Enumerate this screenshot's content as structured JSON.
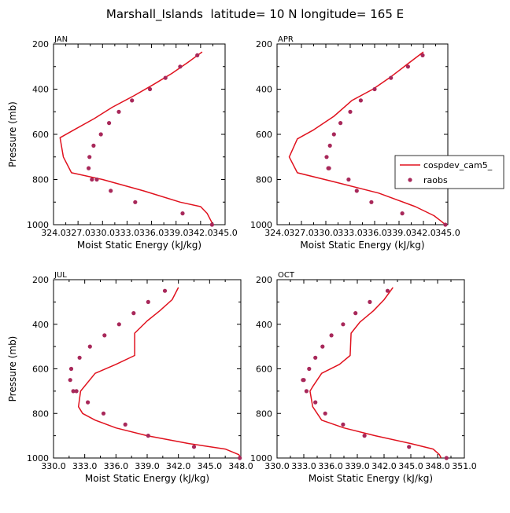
{
  "figure_title": "Marshall_Islands  latitude= 10 N longitude= 165 E",
  "colors": {
    "model": "#e0121e",
    "obs": "#a8285a",
    "axis": "#000000"
  },
  "legend_entries": [
    "cospdev_cam5_",
    "raobs"
  ],
  "chart_data": [
    {
      "type": "line",
      "panel_label": "JAN",
      "xlabel": "Moist Static Energy (kJ/kg)",
      "ylabel": "Pressure (mb)",
      "xlim": [
        324.0,
        345.0
      ],
      "xticks": [
        "324.0",
        "327.0",
        "330.0",
        "333.0",
        "336.0",
        "339.0",
        "342.0",
        "345.0"
      ],
      "ylim": [
        200,
        1000
      ],
      "yticks": [
        "200",
        "400",
        "600",
        "800",
        "1000"
      ],
      "series": [
        {
          "name": "cospdev_cam5_",
          "style": "line",
          "x": [
            342.2,
            340.5,
            338.5,
            336.2,
            333.8,
            331.2,
            329.0,
            326.5,
            324.8,
            325.2,
            326.2,
            330.0,
            335.0,
            339.5,
            342.0,
            342.8,
            343.3,
            343.5
          ],
          "y": [
            235,
            280,
            330,
            380,
            430,
            480,
            530,
            580,
            615,
            700,
            770,
            800,
            850,
            900,
            920,
            950,
            985,
            1000
          ]
        },
        {
          "name": "raobs",
          "style": "markers",
          "x": [
            341.6,
            339.5,
            337.7,
            335.8,
            333.6,
            332.0,
            330.8,
            329.8,
            328.9,
            328.4,
            328.3,
            328.7,
            329.3,
            331.0,
            334.0,
            339.8,
            343.4
          ],
          "y": [
            250,
            300,
            350,
            400,
            450,
            500,
            550,
            600,
            650,
            700,
            750,
            800,
            800,
            850,
            900,
            950,
            1000
          ]
        }
      ]
    },
    {
      "type": "line",
      "panel_label": "APR",
      "xlabel": "Moist Static Energy (kJ/kg)",
      "ylabel": "",
      "xlim": [
        324.0,
        345.0
      ],
      "xticks": [
        "324.0",
        "327.0",
        "330.0",
        "333.0",
        "336.0",
        "339.0",
        "342.0",
        "345.0"
      ],
      "ylim": [
        200,
        1000
      ],
      "yticks": [
        "200",
        "400",
        "600",
        "800",
        "1000"
      ],
      "series": [
        {
          "name": "cospdev_cam5_",
          "style": "line",
          "x": [
            342.0,
            340.0,
            338.0,
            335.8,
            333.2,
            331.0,
            328.5,
            326.5,
            325.5,
            326.5,
            331.0,
            336.5,
            341.0,
            343.3,
            344.2,
            344.7
          ],
          "y": [
            235,
            290,
            345,
            400,
            450,
            520,
            580,
            620,
            700,
            770,
            810,
            860,
            920,
            960,
            985,
            1000
          ]
        },
        {
          "name": "raobs",
          "style": "markers",
          "x": [
            341.9,
            340.1,
            338.0,
            336.0,
            334.3,
            333.0,
            331.8,
            331.0,
            330.5,
            330.1,
            330.3,
            330.4,
            332.8,
            333.8,
            335.6,
            339.4,
            344.7
          ],
          "y": [
            250,
            300,
            350,
            400,
            450,
            500,
            550,
            600,
            650,
            700,
            750,
            750,
            800,
            850,
            900,
            950,
            1000
          ]
        }
      ]
    },
    {
      "type": "line",
      "panel_label": "JUL",
      "xlabel": "Moist Static Energy (kJ/kg)",
      "ylabel": "Pressure (mb)",
      "xlim": [
        330.0,
        348.0
      ],
      "xticks": [
        "330.0",
        "333.0",
        "336.0",
        "339.0",
        "342.0",
        "345.0",
        "348.0"
      ],
      "ylim": [
        200,
        1000
      ],
      "yticks": [
        "200",
        "400",
        "600",
        "800",
        "1000"
      ],
      "series": [
        {
          "name": "cospdev_cam5_",
          "style": "line",
          "x": [
            342.0,
            341.4,
            340.2,
            339.0,
            337.8,
            337.8,
            336.0,
            334.0,
            332.6,
            332.4,
            332.8,
            334.0,
            336.0,
            339.0,
            343.0,
            346.5,
            347.8,
            348.0
          ],
          "y": [
            235,
            290,
            340,
            385,
            440,
            540,
            580,
            620,
            700,
            770,
            800,
            830,
            865,
            900,
            935,
            960,
            985,
            1000
          ]
        },
        {
          "name": "raobs",
          "style": "markers",
          "x": [
            340.7,
            339.1,
            337.7,
            336.3,
            334.9,
            333.5,
            332.5,
            331.7,
            331.6,
            331.9,
            332.2,
            333.3,
            334.8,
            336.9,
            339.1,
            343.5,
            347.9
          ],
          "y": [
            250,
            300,
            350,
            400,
            450,
            500,
            550,
            600,
            650,
            700,
            700,
            750,
            800,
            850,
            900,
            950,
            1000
          ]
        }
      ]
    },
    {
      "type": "line",
      "panel_label": "OCT",
      "xlabel": "Moist Static Energy (kJ/kg)",
      "ylabel": "",
      "xlim": [
        330.0,
        351.0
      ],
      "xticks": [
        "330.0",
        "333.0",
        "336.0",
        "339.0",
        "342.0",
        "345.0",
        "348.0",
        "351.0"
      ],
      "ylim": [
        200,
        1000
      ],
      "yticks": [
        "200",
        "400",
        "600",
        "800",
        "1000"
      ],
      "series": [
        {
          "name": "cospdev_cam5_",
          "style": "line",
          "x": [
            343.0,
            342.0,
            340.8,
            339.3,
            338.3,
            338.2,
            337.0,
            335.0,
            334.0,
            333.7,
            334.0,
            335.0,
            337.5,
            341.0,
            345.0,
            347.5,
            348.2,
            348.4
          ],
          "y": [
            235,
            290,
            340,
            390,
            440,
            540,
            580,
            620,
            680,
            700,
            770,
            830,
            865,
            900,
            935,
            960,
            985,
            1000
          ]
        },
        {
          "name": "raobs",
          "style": "markers",
          "x": [
            342.4,
            340.4,
            338.8,
            337.4,
            336.1,
            335.1,
            334.3,
            333.6,
            333.0,
            332.9,
            333.3,
            334.3,
            335.4,
            337.4,
            339.8,
            344.8,
            349.0
          ],
          "y": [
            250,
            300,
            350,
            400,
            450,
            500,
            550,
            600,
            650,
            650,
            700,
            750,
            800,
            850,
            900,
            950,
            1000
          ]
        }
      ]
    }
  ]
}
